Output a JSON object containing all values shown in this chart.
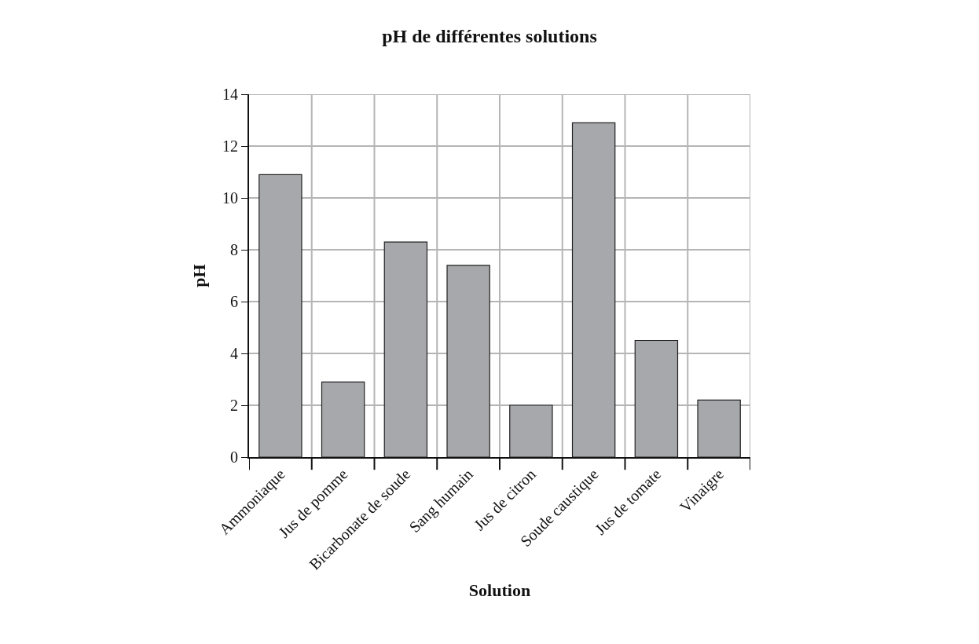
{
  "chart_data": {
    "type": "bar",
    "title": "pH de différentes solutions",
    "xlabel": "Solution",
    "ylabel": "pH",
    "categories": [
      "Ammoniaque",
      "Jus de pomme",
      "Bicarbonate de soude",
      "Sang humain",
      "Jus de citron",
      "Soude caustique",
      "Jus de tomate",
      "Vinaigre"
    ],
    "values": [
      10.9,
      2.9,
      8.3,
      7.4,
      2.0,
      12.9,
      4.5,
      2.2
    ],
    "color": "#a7a8ab",
    "ylim": [
      0,
      14
    ],
    "yticks": [
      0,
      2,
      4,
      6,
      8,
      10,
      12,
      14
    ],
    "grid": true
  }
}
